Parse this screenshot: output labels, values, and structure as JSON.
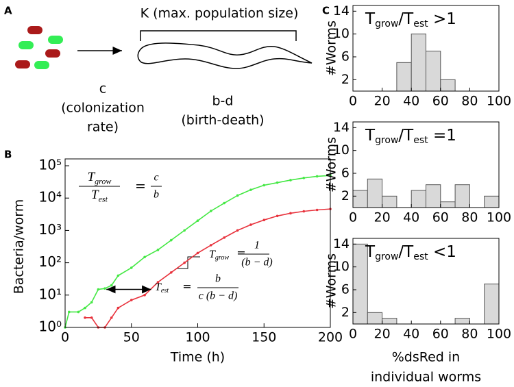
{
  "panel_labels": [
    "A",
    "B",
    "C"
  ],
  "schematic": {
    "title": "K (max. population size)",
    "rate_symbol": "c",
    "rate_text": [
      "(colonization",
      "rate)"
    ],
    "growth_symbol": "b-d",
    "growth_text": "(birth-death)"
  },
  "chart_data": [
    {
      "type": "line",
      "xlabel": "Time (h)",
      "ylabel": "Bacteria/worm",
      "x": [
        0,
        3,
        10,
        15,
        20,
        25,
        30,
        35,
        40,
        50,
        60,
        70,
        80,
        90,
        100,
        110,
        120,
        130,
        140,
        150,
        160,
        170,
        180,
        190,
        200
      ],
      "series": [
        {
          "color": "#44e844",
          "values": [
            1,
            3,
            3,
            4,
            6,
            15,
            16,
            20,
            40,
            70,
            150,
            250,
            500,
            1000,
            2000,
            4000,
            7000,
            12000,
            18000,
            25000,
            30000,
            36000,
            42000,
            47000,
            50000
          ]
        },
        {
          "color": "#e8323c",
          "values": [
            null,
            null,
            null,
            2,
            2,
            1,
            1,
            2,
            4,
            7,
            10,
            25,
            50,
            100,
            200,
            350,
            600,
            1000,
            1500,
            2100,
            2800,
            3400,
            3900,
            4300,
            4600
          ]
        }
      ],
      "xlim": [
        0,
        200
      ],
      "xticks": [
        0,
        50,
        100,
        150,
        200
      ],
      "ylim": [
        1,
        100000
      ],
      "log_scale": true,
      "yticks": [
        {
          "value": 1,
          "label": "10⁰"
        },
        {
          "value": 10,
          "label": "10¹"
        },
        {
          "value": 100,
          "label": "10²"
        },
        {
          "value": 1000,
          "label": "10³"
        },
        {
          "value": 10000,
          "label": "10⁴"
        },
        {
          "value": 100000,
          "label": "10⁵"
        }
      ],
      "ratio_equation": {
        "num": [
          "T",
          "grow"
        ],
        "den": [
          "T",
          "est"
        ],
        "eq": "=",
        "rhs_num": "c",
        "rhs_den": "b"
      },
      "grow_equation": {
        "lhs": [
          "T",
          "grow"
        ],
        "eq": "=",
        "num": "1",
        "den": "(b − d)"
      },
      "est_equation": {
        "lhs": [
          "T",
          "est"
        ],
        "eq": "=",
        "num": "b",
        "den": "c (b − d)"
      }
    },
    {
      "type": "histogram",
      "title": [
        "T",
        "grow",
        "/T",
        "est",
        " >1"
      ],
      "ylabel": "#Worms",
      "color": "#d9d9d9",
      "bins": [
        0,
        10,
        20,
        30,
        40,
        50,
        60,
        70,
        80,
        90,
        100
      ],
      "values": [
        0,
        0,
        0,
        5,
        10,
        7,
        2,
        0,
        0,
        0
      ],
      "xlim": [
        0,
        100
      ],
      "xticks": [
        0,
        20,
        40,
        60,
        80,
        100
      ],
      "ylim": [
        0,
        15
      ],
      "yticks": [
        2,
        6,
        10,
        14
      ]
    },
    {
      "type": "histogram",
      "title": [
        "T",
        "grow",
        "/T",
        "est",
        " =1"
      ],
      "ylabel": "#Worms",
      "color": "#d9d9d9",
      "bins": [
        0,
        10,
        20,
        30,
        40,
        50,
        60,
        70,
        80,
        90,
        100
      ],
      "values": [
        3,
        5,
        2,
        0,
        3,
        4,
        1,
        4,
        0,
        2
      ],
      "xlim": [
        0,
        100
      ],
      "xticks": [
        0,
        20,
        40,
        60,
        80,
        100
      ],
      "ylim": [
        0,
        15
      ],
      "yticks": [
        2,
        6,
        10,
        14
      ]
    },
    {
      "type": "histogram",
      "title": [
        "T",
        "grow",
        "/T",
        "est",
        " <1"
      ],
      "ylabel": "#Worms",
      "color": "#d9d9d9",
      "xlabel": [
        "%dsRed in",
        "individual worms"
      ],
      "bins": [
        0,
        10,
        20,
        30,
        40,
        50,
        60,
        70,
        80,
        90,
        100
      ],
      "values": [
        14,
        2,
        1,
        0,
        0,
        0,
        0,
        1,
        0,
        7
      ],
      "xlim": [
        0,
        100
      ],
      "xticks": [
        0,
        20,
        40,
        60,
        80,
        100
      ],
      "ylim": [
        0,
        15
      ],
      "yticks": [
        2,
        6,
        10,
        14
      ]
    }
  ]
}
